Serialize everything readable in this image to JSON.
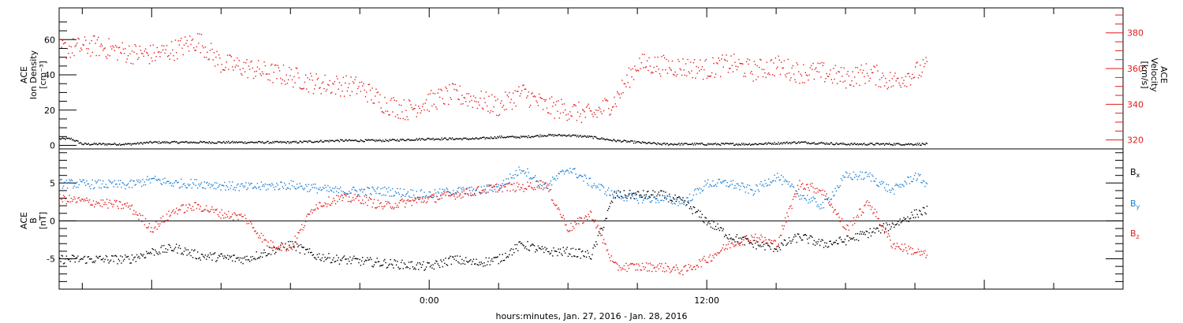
{
  "chart_data": [
    {
      "type": "scatter",
      "title": "",
      "xlabel": "hours:minutes, Jan. 27, 2016 - Jan. 28, 2016",
      "x_tick_labels": [
        "0:00",
        "12:00"
      ],
      "xlim_hours": [
        -16,
        30
      ],
      "left_axis": {
        "label_lines": [
          "ACE",
          "Ion Density",
          "[cm⁻³]"
        ],
        "ylim": [
          -2,
          78
        ],
        "ticks": [
          0,
          20,
          40,
          60
        ],
        "tick_labels": [
          "0",
          "20",
          "40",
          "60"
        ]
      },
      "right_axis": {
        "label_lines": [
          "ACE",
          "Velocity",
          "[km/s]"
        ],
        "ylim": [
          315,
          394
        ],
        "ticks": [
          320,
          340,
          360,
          380
        ],
        "tick_labels": [
          "320",
          "340",
          "360",
          "380"
        ],
        "color": "#e41a1a"
      },
      "series": [
        {
          "color": "#000000",
          "axis": "left",
          "points": [
            [
              -16,
              4
            ],
            [
              -15.5,
              4
            ],
            [
              -15,
              1
            ],
            [
              -14,
              1
            ],
            [
              -13,
              1
            ],
            [
              -12,
              2
            ],
            [
              -10,
              2
            ],
            [
              -8,
              2
            ],
            [
              -6,
              2
            ],
            [
              -4,
              3
            ],
            [
              -2,
              3
            ],
            [
              0,
              4
            ],
            [
              1,
              4
            ],
            [
              2,
              4
            ],
            [
              3,
              5
            ],
            [
              4,
              5
            ],
            [
              5,
              6
            ],
            [
              6,
              6
            ],
            [
              7,
              5
            ],
            [
              8,
              3
            ],
            [
              9,
              2
            ],
            [
              10,
              1
            ],
            [
              12,
              1
            ],
            [
              14,
              1
            ],
            [
              16,
              2
            ],
            [
              18,
              1
            ],
            [
              20,
              1
            ],
            [
              21.5,
              1
            ]
          ]
        },
        {
          "color": "#e41a1a",
          "axis": "right",
          "points": [
            [
              -16,
              371
            ],
            [
              -14.5,
              373
            ],
            [
              -13,
              369
            ],
            [
              -12,
              368
            ],
            [
              -11,
              371
            ],
            [
              -10,
              376
            ],
            [
              -9,
              363
            ],
            [
              -8,
              361
            ],
            [
              -7,
              358
            ],
            [
              -6,
              356
            ],
            [
              -5,
              352
            ],
            [
              -4,
              351
            ],
            [
              -3,
              350
            ],
            [
              -2,
              341
            ],
            [
              -1,
              337
            ],
            [
              0,
              342
            ],
            [
              1,
              346
            ],
            [
              2,
              343
            ],
            [
              3,
              339
            ],
            [
              4,
              347
            ],
            [
              5,
              339
            ],
            [
              6,
              337
            ],
            [
              7,
              334
            ],
            [
              8,
              342
            ],
            [
              9,
              363
            ],
            [
              10,
              362
            ],
            [
              11,
              361
            ],
            [
              12,
              360
            ],
            [
              13,
              363
            ],
            [
              14,
              359
            ],
            [
              15,
              362
            ],
            [
              16,
              358
            ],
            [
              17,
              358
            ],
            [
              18,
              355
            ],
            [
              19,
              358
            ],
            [
              20,
              353
            ],
            [
              21,
              358
            ],
            [
              21.5,
              361
            ]
          ]
        }
      ]
    },
    {
      "type": "scatter",
      "title": "",
      "left_axis": {
        "label_lines": [
          "ACE",
          "B",
          "[nT]"
        ],
        "ylim": [
          -9,
          9.5
        ],
        "ticks": [
          -5,
          0,
          5
        ],
        "tick_labels": [
          "-5",
          "0",
          "5"
        ]
      },
      "zero_line": true,
      "series": [
        {
          "name": "Bx",
          "color": "#000000",
          "points": [
            [
              -16,
              -5
            ],
            [
              -13,
              -5
            ],
            [
              -12,
              -4
            ],
            [
              -11,
              -3.5
            ],
            [
              -10,
              -4.5
            ],
            [
              -8,
              -5
            ],
            [
              -6,
              -3
            ],
            [
              -5,
              -4.5
            ],
            [
              -4,
              -5
            ],
            [
              -2,
              -5.5
            ],
            [
              0,
              -6
            ],
            [
              1,
              -5
            ],
            [
              2,
              -5.5
            ],
            [
              3,
              -5
            ],
            [
              4,
              -3
            ],
            [
              5,
              -4
            ],
            [
              6,
              -4
            ],
            [
              7,
              -4.5
            ],
            [
              8,
              3.5
            ],
            [
              9,
              3.5
            ],
            [
              10,
              3.5
            ],
            [
              11,
              2.5
            ],
            [
              12,
              0
            ],
            [
              13,
              -2
            ],
            [
              14,
              -3
            ],
            [
              15,
              -3.5
            ],
            [
              16,
              -2
            ],
            [
              17,
              -3
            ],
            [
              18,
              -2.5
            ],
            [
              19,
              -1.5
            ],
            [
              20,
              -0.5
            ],
            [
              21,
              1
            ],
            [
              21.5,
              1.5
            ]
          ]
        },
        {
          "name": "By",
          "color": "#1b7fd6",
          "points": [
            [
              -16,
              5
            ],
            [
              -13,
              4.8
            ],
            [
              -12,
              5.5
            ],
            [
              -11,
              5
            ],
            [
              -10,
              5
            ],
            [
              -8,
              4.5
            ],
            [
              -6,
              4.8
            ],
            [
              -4,
              4
            ],
            [
              -2,
              4
            ],
            [
              0,
              3.5
            ],
            [
              1,
              4
            ],
            [
              2,
              4
            ],
            [
              3,
              4.5
            ],
            [
              4,
              7
            ],
            [
              5,
              4.5
            ],
            [
              6,
              7
            ],
            [
              7,
              5
            ],
            [
              8,
              3.5
            ],
            [
              9,
              3
            ],
            [
              10,
              3
            ],
            [
              11,
              2.5
            ],
            [
              12,
              5
            ],
            [
              13,
              5
            ],
            [
              14,
              4
            ],
            [
              15,
              6
            ],
            [
              16,
              3.5
            ],
            [
              17,
              2
            ],
            [
              18,
              6
            ],
            [
              19,
              6
            ],
            [
              20,
              4
            ],
            [
              21,
              6
            ],
            [
              21.5,
              5
            ]
          ]
        },
        {
          "name": "Bz",
          "color": "#e41a1a",
          "points": [
            [
              -16,
              3
            ],
            [
              -13,
              2
            ],
            [
              -12,
              -1
            ],
            [
              -11,
              1.5
            ],
            [
              -10,
              2
            ],
            [
              -9,
              1
            ],
            [
              -8,
              0.5
            ],
            [
              -7,
              -3
            ],
            [
              -6,
              -3.5
            ],
            [
              -5,
              2
            ],
            [
              -4,
              3
            ],
            [
              -3,
              3
            ],
            [
              -2,
              2
            ],
            [
              0,
              3
            ],
            [
              1,
              3.5
            ],
            [
              2,
              4
            ],
            [
              3,
              4.5
            ],
            [
              4,
              4.5
            ],
            [
              5,
              5
            ],
            [
              6,
              -1
            ],
            [
              7,
              1
            ],
            [
              8,
              -6
            ],
            [
              9,
              -6
            ],
            [
              10,
              -6
            ],
            [
              11,
              -6.5
            ],
            [
              12,
              -5
            ],
            [
              13,
              -3
            ],
            [
              14,
              -2
            ],
            [
              15,
              -3
            ],
            [
              16,
              5
            ],
            [
              17,
              4
            ],
            [
              18,
              -1
            ],
            [
              19,
              2.5
            ],
            [
              20,
              -3
            ],
            [
              21,
              -4
            ],
            [
              21.5,
              -4.5
            ]
          ]
        }
      ],
      "legend": [
        {
          "main": "B",
          "sub": "x",
          "color": "#000000"
        },
        {
          "main": "B",
          "sub": "y",
          "color": "#1b7fd6"
        },
        {
          "main": "B",
          "sub": "z",
          "color": "#e41a1a"
        }
      ],
      "legend_placement": "right"
    }
  ]
}
